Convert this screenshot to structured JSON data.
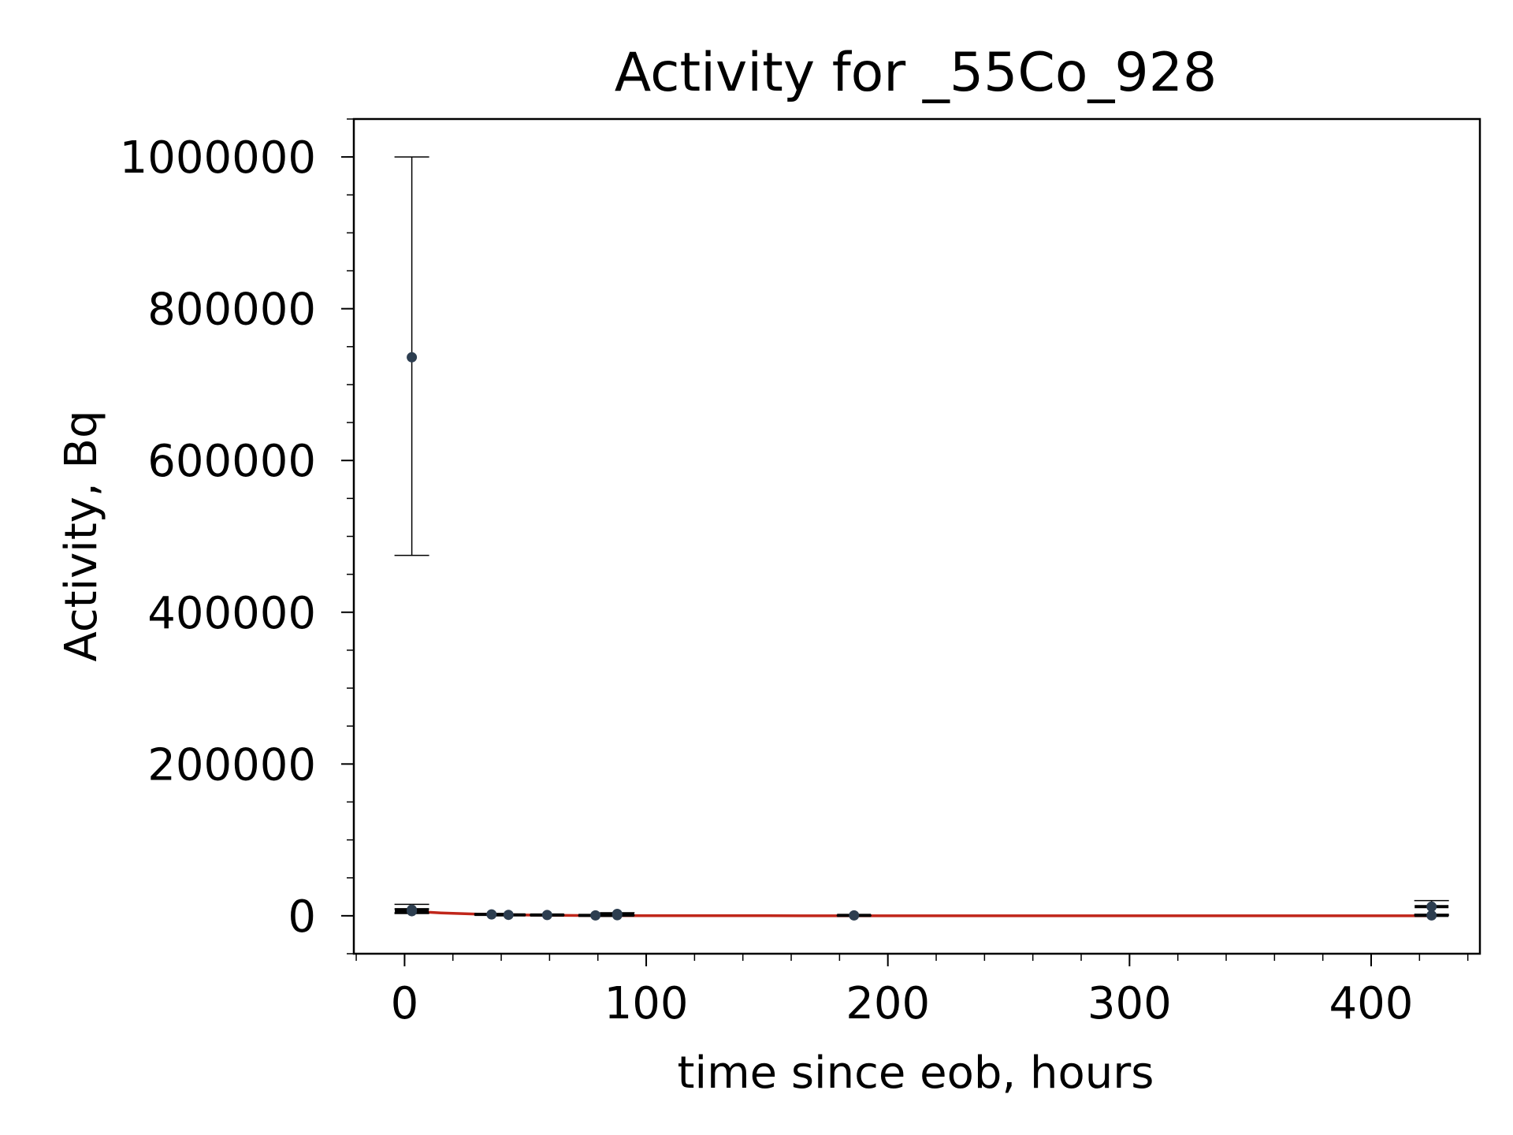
{
  "chart_data": {
    "type": "scatter",
    "title": "Activity for _55Co_928",
    "xlabel": "time since eob, hours",
    "ylabel": "Activity, Bq",
    "xlim": [
      -21,
      445
    ],
    "ylim": [
      -50000,
      1050000
    ],
    "xticks": [
      0,
      100,
      200,
      300,
      400
    ],
    "xtick_labels": [
      "0",
      "100",
      "200",
      "300",
      "400"
    ],
    "yticks": [
      0,
      200000,
      400000,
      600000,
      800000,
      1000000
    ],
    "ytick_labels": [
      "0",
      "200000",
      "400000",
      "600000",
      "800000",
      "1000000"
    ],
    "x_minor_step": 20,
    "y_minor_step": 50000,
    "grid": false,
    "colors": {
      "points": "#2d3e50",
      "fit": "#c0261a",
      "errorbar": "#000000"
    },
    "points": [
      {
        "x": 3,
        "y": 736000,
        "yerr_low": 475000,
        "yerr_high": 1000000,
        "xerr": 0
      },
      {
        "x": 3,
        "y": 8000,
        "yerr_low": 4000,
        "yerr_high": 15000,
        "xerr": 7
      },
      {
        "x": 3,
        "y": 6000,
        "yerr_low": 3000,
        "yerr_high": 9000,
        "xerr": 7
      },
      {
        "x": 36,
        "y": 1800,
        "yerr_low": 1000,
        "yerr_high": 2600,
        "xerr": 7
      },
      {
        "x": 43,
        "y": 1200,
        "yerr_low": 700,
        "yerr_high": 1700,
        "xerr": 7
      },
      {
        "x": 59,
        "y": 1000,
        "yerr_low": 600,
        "yerr_high": 1400,
        "xerr": 7
      },
      {
        "x": 79,
        "y": 500,
        "yerr_low": 300,
        "yerr_high": 700,
        "xerr": 7
      },
      {
        "x": 88,
        "y": 2500,
        "yerr_low": 1000,
        "yerr_high": 4000,
        "xerr": 7
      },
      {
        "x": 88,
        "y": 800,
        "yerr_low": 400,
        "yerr_high": 1200,
        "xerr": 7
      },
      {
        "x": 186,
        "y": 500,
        "yerr_low": 300,
        "yerr_high": 700,
        "xerr": 7
      },
      {
        "x": 425,
        "y": 12000,
        "yerr_low": 2000,
        "yerr_high": 20000,
        "xerr": 7
      },
      {
        "x": 425,
        "y": 500,
        "yerr_low": 200,
        "yerr_high": 800,
        "xerr": 7
      }
    ],
    "fit": {
      "x": [
        0,
        5,
        10,
        15,
        20,
        25,
        30,
        40,
        50,
        60,
        80,
        100,
        150,
        200,
        300,
        425
      ],
      "y": [
        6500,
        5500,
        4600,
        3800,
        3200,
        2700,
        2200,
        1500,
        1000,
        700,
        300,
        150,
        30,
        10,
        0,
        0
      ]
    }
  }
}
